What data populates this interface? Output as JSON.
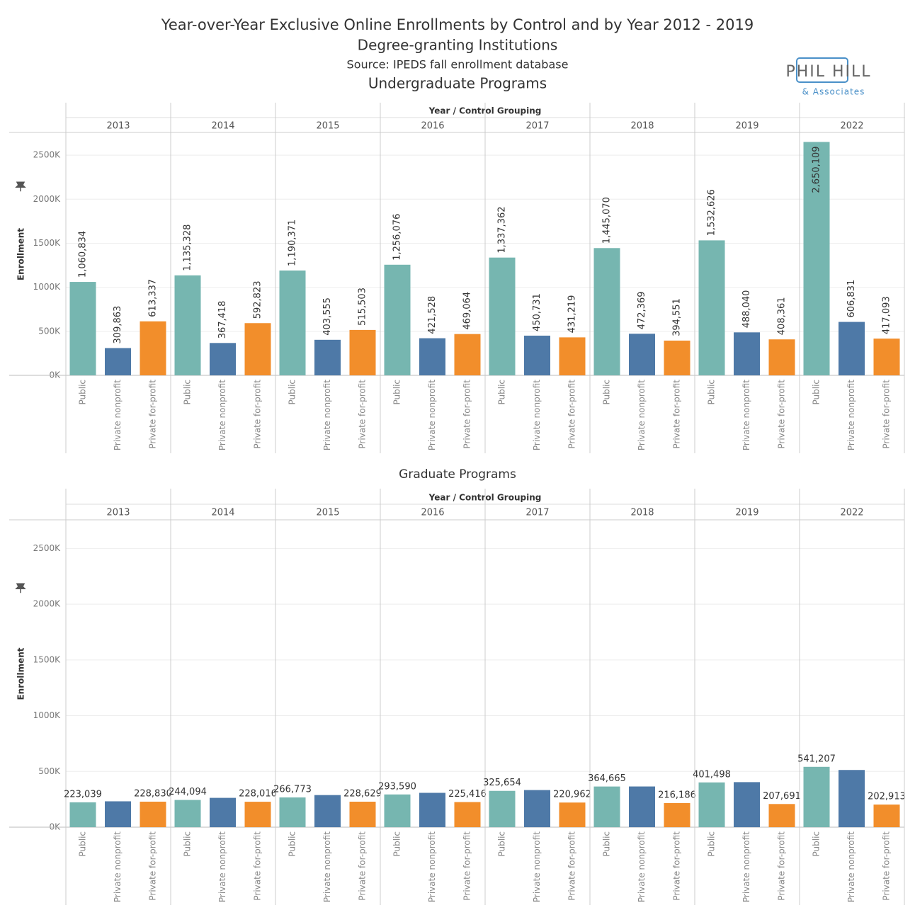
{
  "header": {
    "title": "Year-over-Year Exclusive Online Enrollments by Control and by Year 2012 - 2019",
    "subtitle": "Degree-granting Institutions",
    "source": "Source: IPEDS fall enrollment database",
    "logo": "PHIL HILL",
    "logo_sub": "& Associates"
  },
  "chart_data": [
    {
      "type": "grouped-bar",
      "title": "Undergraduate Programs",
      "group_label": "Year / Control Grouping",
      "ylabel": "Enrollment",
      "groups": [
        "2013",
        "2014",
        "2015",
        "2016",
        "2017",
        "2018",
        "2019",
        "2022"
      ],
      "series": [
        {
          "name": "Public",
          "color": "#76b6b0",
          "values": [
            1060834,
            1135328,
            1190371,
            1256076,
            1337362,
            1445070,
            1532626,
            2650109
          ],
          "value_labels": [
            "1,060,834",
            "1,135,328",
            "1,190,371",
            "1,256,076",
            "1,337,362",
            "1,445,070",
            "1,532,626",
            "2,650,109"
          ]
        },
        {
          "name": "Private nonprofit",
          "color": "#4e79a7",
          "values": [
            309863,
            367418,
            403555,
            421528,
            450731,
            472369,
            488040,
            606831
          ],
          "value_labels": [
            "309,863",
            "367,418",
            "403,555",
            "421,528",
            "450,731",
            "472,369",
            "488,040",
            "606,831"
          ]
        },
        {
          "name": "Private for-profit",
          "color": "#f28e2b",
          "values": [
            613337,
            592823,
            515503,
            469064,
            431219,
            394551,
            408361,
            417093
          ],
          "value_labels": [
            "613,337",
            "592,823",
            "515,503",
            "469,064",
            "431,219",
            "394,551",
            "408,361",
            "417,093"
          ]
        }
      ],
      "ylim": [
        0,
        2750000
      ],
      "yticks": [
        {
          "value": 0,
          "label": "0K"
        },
        {
          "value": 500000,
          "label": "500K"
        },
        {
          "value": 1000000,
          "label": "1000K"
        },
        {
          "value": 1500000,
          "label": "1500K"
        },
        {
          "value": 2000000,
          "label": "2000K"
        },
        {
          "value": 2500000,
          "label": "2500K"
        }
      ],
      "grid": true,
      "label_rotation": "vertical"
    },
    {
      "type": "grouped-bar",
      "title": "Graduate Programs",
      "group_label": "Year / Control Grouping",
      "ylabel": "Enrollment",
      "groups": [
        "2013",
        "2014",
        "2015",
        "2016",
        "2017",
        "2018",
        "2019",
        "2022"
      ],
      "series": [
        {
          "name": "Public",
          "color": "#76b6b0",
          "values": [
            223039,
            244094,
            266773,
            293590,
            325654,
            364665,
            401498,
            541207
          ],
          "value_labels": [
            "223,039",
            "244,094",
            "266,773",
            "293,590",
            "325,654",
            "364,665",
            "401,498",
            "541,207"
          ]
        },
        {
          "name": "Private nonprofit",
          "color": "#4e79a7",
          "values": [
            232000,
            263000,
            288000,
            308000,
            333000,
            365000,
            404000,
            513000
          ],
          "value_labels": [
            null,
            null,
            null,
            null,
            null,
            null,
            null,
            null
          ]
        },
        {
          "name": "Private for-profit",
          "color": "#f28e2b",
          "values": [
            228830,
            228016,
            228629,
            225416,
            220962,
            216186,
            207691,
            202913
          ],
          "value_labels": [
            "228,830",
            "228,016",
            "228,629",
            "225,416",
            "220,962",
            "216,186",
            "207,691",
            "202,913"
          ]
        }
      ],
      "ylim": [
        0,
        2750000
      ],
      "yticks": [
        {
          "value": 0,
          "label": "0K"
        },
        {
          "value": 500000,
          "label": "500K"
        },
        {
          "value": 1000000,
          "label": "1000K"
        },
        {
          "value": 1500000,
          "label": "1500K"
        },
        {
          "value": 2000000,
          "label": "2000K"
        },
        {
          "value": 2500000,
          "label": "2500K"
        }
      ],
      "grid": true,
      "label_rotation": "horizontal"
    }
  ]
}
